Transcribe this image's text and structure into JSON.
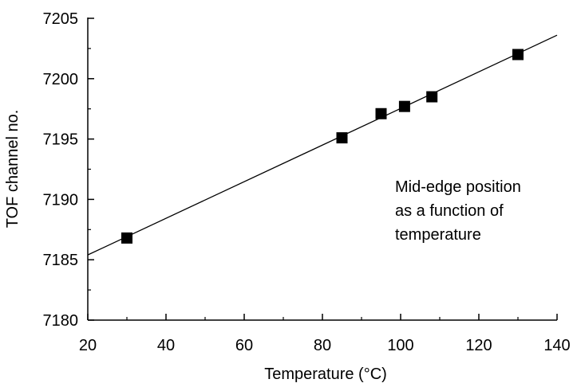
{
  "chart_data": {
    "type": "scatter",
    "title": "",
    "xlabel": "Temperature (°C)",
    "ylabel": "TOF channel no.",
    "xlim": [
      20,
      140
    ],
    "ylim": [
      7180,
      7205
    ],
    "xticks": [
      20,
      40,
      60,
      80,
      100,
      120,
      140
    ],
    "yticks": [
      7180,
      7185,
      7190,
      7195,
      7200,
      7205
    ],
    "grid": false,
    "legend": "none",
    "series": [
      {
        "marker": "square",
        "color": "#000000",
        "points": [
          {
            "x": 30,
            "y": 7186.8
          },
          {
            "x": 85,
            "y": 7195.1
          },
          {
            "x": 95,
            "y": 7197.1
          },
          {
            "x": 101,
            "y": 7197.7
          },
          {
            "x": 108,
            "y": 7198.5
          },
          {
            "x": 130,
            "y": 7202.0
          }
        ]
      }
    ],
    "fit_line": {
      "color": "#000000",
      "x": [
        20,
        140
      ],
      "y": [
        7185.4,
        7203.6
      ]
    },
    "annotation": {
      "lines": [
        "Mid-edge position",
        "as a function of",
        "temperature"
      ]
    }
  }
}
